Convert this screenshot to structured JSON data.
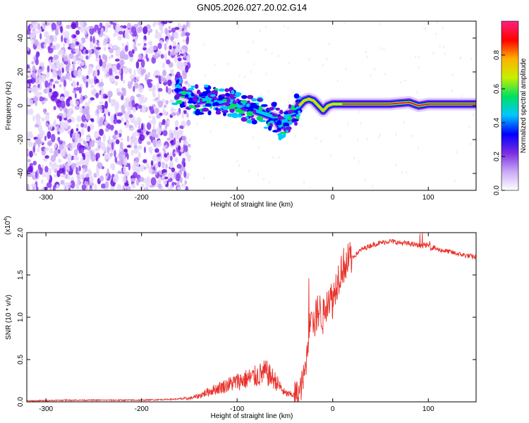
{
  "title": "GN05.2026.027.20.02.G14",
  "chart_data": [
    {
      "type": "heatmap",
      "xlabel": "Height of straight line (km)",
      "ylabel": "Frequency (Hz)",
      "xlim": [
        -320,
        150
      ],
      "ylim": [
        -50,
        50
      ],
      "xticks": [
        -300,
        -200,
        -100,
        0,
        100
      ],
      "yticks": [
        -40,
        -20,
        0,
        20,
        40
      ],
      "colorbar": {
        "label": "Normalized spectral amplitude",
        "range": [
          0,
          1
        ],
        "ticks": [
          "0.0",
          "0.2",
          "0.4",
          "0.6",
          "0.8"
        ],
        "colors": [
          "#ffffff",
          "#c9a8f5",
          "#7a2be2",
          "#0000ff",
          "#00c8ff",
          "#00e060",
          "#c8f000",
          "#ffb000",
          "#ff0000",
          "#ff2080"
        ]
      },
      "ridge": {
        "x": [
          -160,
          -150,
          -140,
          -130,
          -120,
          -110,
          -100,
          -90,
          -80,
          -70,
          -60,
          -55,
          -50,
          -45,
          -40,
          -35,
          -30,
          -25,
          -20,
          -15,
          -10,
          -5,
          0,
          10,
          20,
          40,
          60,
          80,
          90,
          100,
          110,
          130,
          150
        ],
        "y": [
          8,
          6,
          3,
          4,
          2,
          3,
          0,
          -1,
          -3,
          -5,
          -7,
          -12,
          -10,
          -5,
          -4,
          0,
          3,
          4,
          3,
          0,
          -3,
          0,
          1,
          1,
          1,
          1,
          1,
          2,
          0,
          1,
          1,
          1,
          1
        ]
      }
    },
    {
      "type": "line",
      "xlabel": "Height of straight line (km)",
      "ylabel": "SNR (10 * v/v)",
      "multiplier_label": "(x10",
      "multiplier_exp": "4",
      "xlim": [
        -320,
        150
      ],
      "ylim": [
        0,
        2.0
      ],
      "xticks": [
        -300,
        -200,
        -100,
        0,
        100
      ],
      "yticks": [
        "0.0",
        "0.5",
        "1.0",
        "1.5",
        "2.0"
      ],
      "series": [
        {
          "name": "SNR",
          "color": "#e8302a",
          "x": [
            -320,
            -280,
            -240,
            -200,
            -170,
            -150,
            -140,
            -130,
            -120,
            -110,
            -100,
            -90,
            -80,
            -70,
            -60,
            -50,
            -40,
            -35,
            -30,
            -28,
            -25,
            -22,
            -20,
            -15,
            -10,
            -5,
            0,
            5,
            10,
            20,
            30,
            40,
            50,
            60,
            70,
            80,
            90,
            100,
            110,
            120,
            130,
            140,
            150
          ],
          "y": [
            0.01,
            0.02,
            0.02,
            0.02,
            0.03,
            0.04,
            0.07,
            0.12,
            0.16,
            0.2,
            0.24,
            0.27,
            0.3,
            0.35,
            0.25,
            0.1,
            0.08,
            0.1,
            0.3,
            0.45,
            0.8,
            1.2,
            0.9,
            1.1,
            1.0,
            1.25,
            1.2,
            1.45,
            1.6,
            1.7,
            1.8,
            1.85,
            1.88,
            1.9,
            1.88,
            1.87,
            1.85,
            1.85,
            1.8,
            1.78,
            1.75,
            1.73,
            1.71
          ]
        }
      ]
    }
  ]
}
